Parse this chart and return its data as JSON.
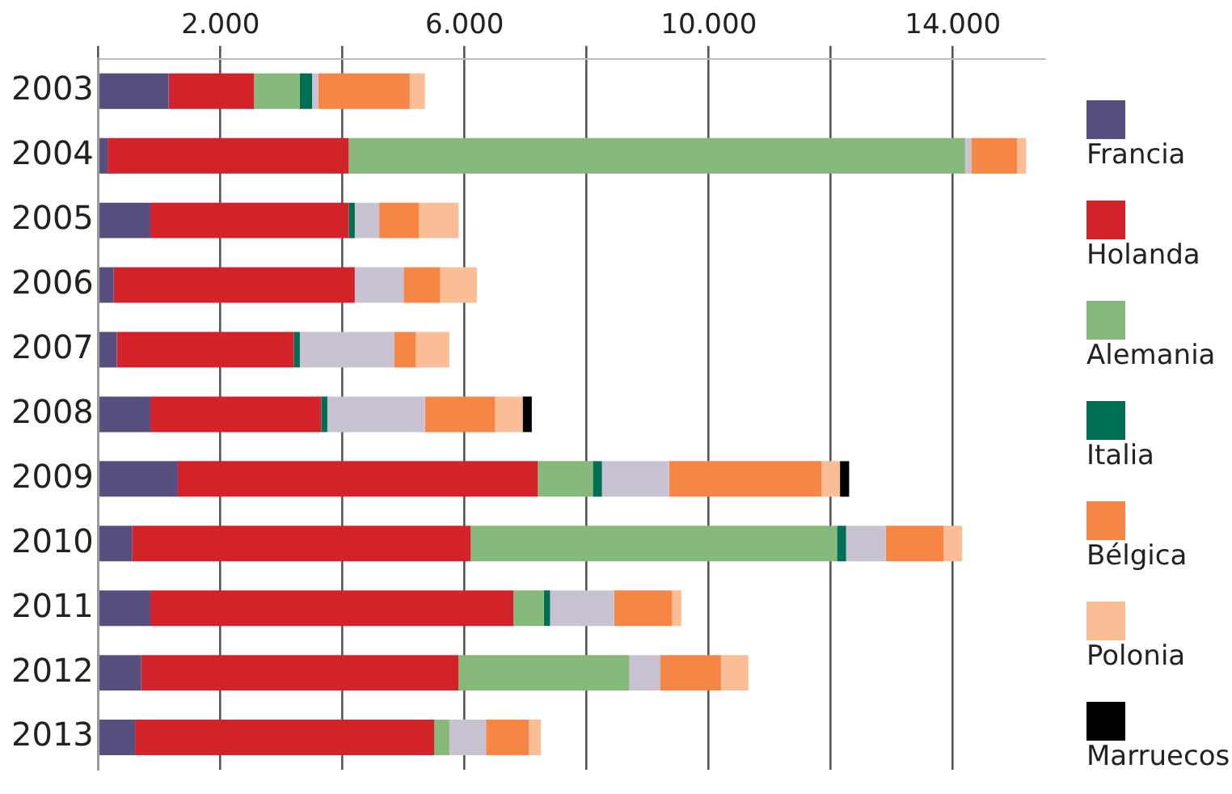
{
  "chart_data": {
    "type": "bar",
    "orientation": "horizontal",
    "stacked": true,
    "categories": [
      "2003",
      "2004",
      "2005",
      "2006",
      "2007",
      "2008",
      "2009",
      "2010",
      "2011",
      "2012",
      "2013"
    ],
    "series": [
      {
        "name": "Francia",
        "color": "#554e7e",
        "values": [
          1150,
          150,
          850,
          250,
          300,
          850,
          1300,
          550,
          850,
          700,
          600
        ]
      },
      {
        "name": "Holanda",
        "color": "#d2232a",
        "values": [
          1400,
          3950,
          3250,
          3950,
          2900,
          2800,
          5900,
          5550,
          5950,
          5200,
          4900
        ]
      },
      {
        "name": "Alemania",
        "color": "#88b97c",
        "values": [
          750,
          10100,
          null,
          null,
          null,
          null,
          900,
          6000,
          500,
          2800,
          250
        ]
      },
      {
        "name": "Italia",
        "color": "#006e53",
        "values": [
          200,
          null,
          100,
          null,
          100,
          100,
          150,
          150,
          100,
          null,
          null
        ]
      },
      {
        "color": "#c8c2d2",
        "values": [
          100,
          100,
          400,
          800,
          1550,
          1600,
          1100,
          650,
          1050,
          500,
          600
        ]
      },
      {
        "name": "Bélgica",
        "color": "#f58646",
        "values": [
          1500,
          750,
          650,
          600,
          350,
          1150,
          2500,
          950,
          950,
          1000,
          700
        ]
      },
      {
        "name": "Polonia",
        "color": "#fbbd95",
        "values": [
          250,
          150,
          650,
          600,
          550,
          450,
          300,
          300,
          150,
          450,
          200
        ]
      },
      {
        "name": "Marruecos",
        "color": "#000000",
        "values": [
          null,
          null,
          null,
          null,
          null,
          150,
          150,
          null,
          null,
          null,
          null
        ]
      }
    ],
    "xlim": [
      0,
      15500
    ],
    "xticks": [
      {
        "value": 0,
        "label": null
      },
      {
        "value": 2000,
        "label": "2.000"
      },
      {
        "value": 4000,
        "label": null
      },
      {
        "value": 6000,
        "label": "6.000"
      },
      {
        "value": 8000,
        "label": null
      },
      {
        "value": 10000,
        "label": "10.000"
      },
      {
        "value": 12000,
        "label": null
      },
      {
        "value": 14000,
        "label": "14.000"
      }
    ],
    "grid": "x",
    "legend": "right"
  }
}
